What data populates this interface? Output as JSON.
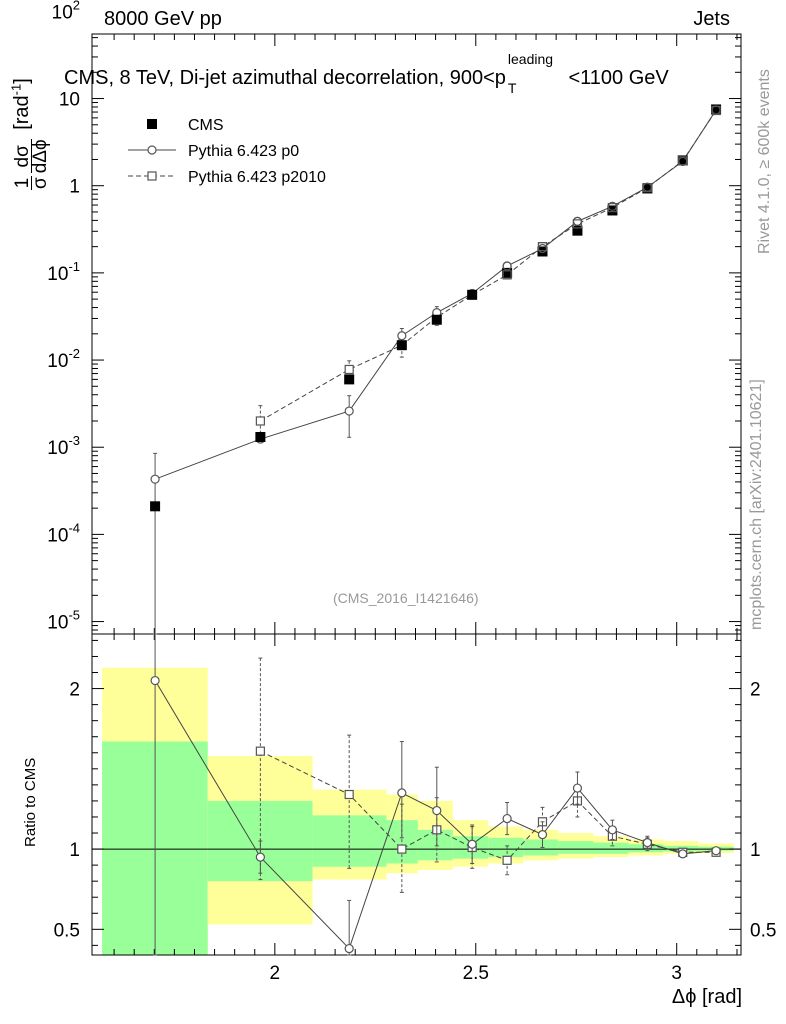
{
  "header": {
    "beam": "8000 GeV pp",
    "process": "Jets",
    "side_rivet": "Rivet 4.1.0, ≥ 600k events",
    "side_mcplots": "mcplots.cern.ch [arXiv:2401.10621]",
    "analysis_id": "(CMS_2016_I1421646)"
  },
  "chart_data": [
    {
      "type": "scatter",
      "title": "CMS, 8 TeV, Di-jet azimuthal decorrelation, 900<p_T^leading<1100 GeV",
      "title_parts": {
        "main": "CMS, 8 TeV, Di-jet azimuthal decorrelation, 900<p",
        "sup": "leading",
        "sub": "T",
        "tail": "<1100 GeV"
      },
      "xlabel": "Δϕ [rad]",
      "ylabel": "1/σ dσ/dΔϕ [rad⁻¹]",
      "ylabel_parts": {
        "unit": "[rad",
        "exp": "-1",
        "close": "]"
      },
      "yscale": "log",
      "xlim": [
        1.545,
        3.16
      ],
      "ylim": [
        7.2e-06,
        55
      ],
      "yticks": [
        {
          "value": 1e-05,
          "label": "10",
          "exp": "-5"
        },
        {
          "value": 0.0001,
          "label": "10",
          "exp": "-4"
        },
        {
          "value": 0.001,
          "label": "10",
          "exp": "-3"
        },
        {
          "value": 0.01,
          "label": "10",
          "exp": "-2"
        },
        {
          "value": 0.1,
          "label": "10",
          "exp": "-1"
        },
        {
          "value": 1,
          "label": "1",
          "exp": ""
        },
        {
          "value": 10,
          "label": "10",
          "exp": ""
        },
        {
          "value": 100,
          "label": "10",
          "exp": "2"
        }
      ],
      "x": [
        1.702,
        1.964,
        2.185,
        2.316,
        2.403,
        2.491,
        2.578,
        2.666,
        2.753,
        2.84,
        2.927,
        3.015,
        3.098
      ],
      "series": [
        {
          "name": "CMS",
          "marker": "filled-square",
          "values": [
            0.00021,
            0.00131,
            0.006,
            0.0148,
            0.029,
            0.056,
            0.1,
            0.176,
            0.305,
            0.52,
            0.93,
            1.95,
            7.5
          ]
        },
        {
          "name": "Pythia 6.423 p0",
          "marker": "open-circle",
          "line": "solid",
          "values": [
            0.00043,
            0.00124,
            0.0026,
            0.019,
            0.035,
            0.058,
            0.12,
            0.19,
            0.39,
            0.58,
            0.96,
            1.9,
            7.4
          ],
          "err_low": [
            0.00043,
            0.0001,
            0.0013,
            0.004,
            0.006,
            0.006,
            0.012,
            0.018,
            0.04,
            0.05,
            0.08,
            0.1,
            0.3
          ],
          "err_high": [
            0.00042,
            0.0001,
            0.0013,
            0.004,
            0.006,
            0.006,
            0.012,
            0.018,
            0.04,
            0.05,
            0.08,
            0.1,
            0.3
          ]
        },
        {
          "name": "Pythia 6.423 p2010",
          "marker": "open-square",
          "line": "dashed",
          "values": [
            null,
            0.002,
            0.0078,
            0.0148,
            0.031,
            0.056,
            0.095,
            0.2,
            0.365,
            0.56,
            0.95,
            1.93,
            7.3
          ],
          "err_low": [
            null,
            0.0006,
            0.002,
            0.004,
            0.006,
            0.006,
            0.01,
            0.02,
            0.04,
            0.05,
            0.08,
            0.1,
            0.3
          ],
          "err_high": [
            null,
            0.001,
            0.002,
            0.004,
            0.006,
            0.006,
            0.01,
            0.02,
            0.04,
            0.05,
            0.08,
            0.1,
            0.3
          ]
        }
      ]
    },
    {
      "type": "scatter",
      "ylabel": "Ratio to CMS",
      "xlabel": "Δϕ [rad]",
      "xlim": [
        1.545,
        3.16
      ],
      "ylim": [
        0.34,
        2.34
      ],
      "xticks": [
        2,
        2.5,
        3
      ],
      "xtick_labels": [
        "2",
        "2.5",
        "3"
      ],
      "yticks": [
        0.5,
        1,
        2
      ],
      "ytick_labels": [
        "0.5",
        "1",
        "2"
      ],
      "x": [
        1.702,
        1.964,
        2.185,
        2.316,
        2.403,
        2.491,
        2.578,
        2.666,
        2.753,
        2.84,
        2.927,
        3.015,
        3.098
      ],
      "bin_edges": [
        1.57,
        1.833,
        2.094,
        2.278,
        2.356,
        2.443,
        2.531,
        2.618,
        2.705,
        2.793,
        2.88,
        2.967,
        3.054,
        3.142
      ],
      "band_inner": [
        [
          0.34,
          1.67
        ],
        [
          0.8,
          1.3
        ],
        [
          0.89,
          1.21
        ],
        [
          0.91,
          1.18
        ],
        [
          0.93,
          1.12
        ],
        [
          0.94,
          1.08
        ],
        [
          0.95,
          1.07
        ],
        [
          0.96,
          1.06
        ],
        [
          0.97,
          1.05
        ],
        [
          0.97,
          1.04
        ],
        [
          0.98,
          1.03
        ],
        [
          0.985,
          1.02
        ],
        [
          0.99,
          1.015
        ]
      ],
      "band_outer": [
        [
          0.34,
          2.13
        ],
        [
          0.53,
          1.58
        ],
        [
          0.81,
          1.37
        ],
        [
          0.85,
          1.34
        ],
        [
          0.87,
          1.3
        ],
        [
          0.89,
          1.18
        ],
        [
          0.91,
          1.14
        ],
        [
          0.93,
          1.12
        ],
        [
          0.94,
          1.1
        ],
        [
          0.95,
          1.08
        ],
        [
          0.96,
          1.06
        ],
        [
          0.97,
          1.05
        ],
        [
          0.975,
          1.035
        ]
      ],
      "series": [
        {
          "name": "Pythia 6.423 p0",
          "marker": "open-circle",
          "line": "solid",
          "values": [
            2.05,
            0.95,
            0.38,
            1.35,
            1.24,
            1.03,
            1.19,
            1.09,
            1.38,
            1.12,
            1.04,
            0.97,
            0.99
          ],
          "err_low": [
            2.05,
            0.1,
            0.2,
            0.28,
            0.22,
            0.12,
            0.1,
            0.08,
            0.1,
            0.06,
            0.04,
            0.02,
            0.01
          ],
          "err_high": [
            0.3,
            0.1,
            0.3,
            0.32,
            0.27,
            0.12,
            0.1,
            0.08,
            0.1,
            0.06,
            0.04,
            0.02,
            0.01
          ]
        },
        {
          "name": "Pythia 6.423 p2010",
          "marker": "open-square",
          "line": "dashed",
          "values": [
            null,
            1.61,
            1.34,
            1.0,
            1.12,
            1.01,
            0.93,
            1.17,
            1.3,
            1.08,
            1.03,
            0.98,
            0.98
          ],
          "err_low": [
            null,
            0.8,
            0.46,
            0.27,
            0.2,
            0.13,
            0.09,
            0.09,
            0.1,
            0.06,
            0.04,
            0.02,
            0.01
          ],
          "err_high": [
            null,
            0.58,
            0.37,
            0.28,
            0.2,
            0.13,
            0.09,
            0.09,
            0.1,
            0.06,
            0.04,
            0.02,
            0.01
          ]
        }
      ]
    }
  ]
}
